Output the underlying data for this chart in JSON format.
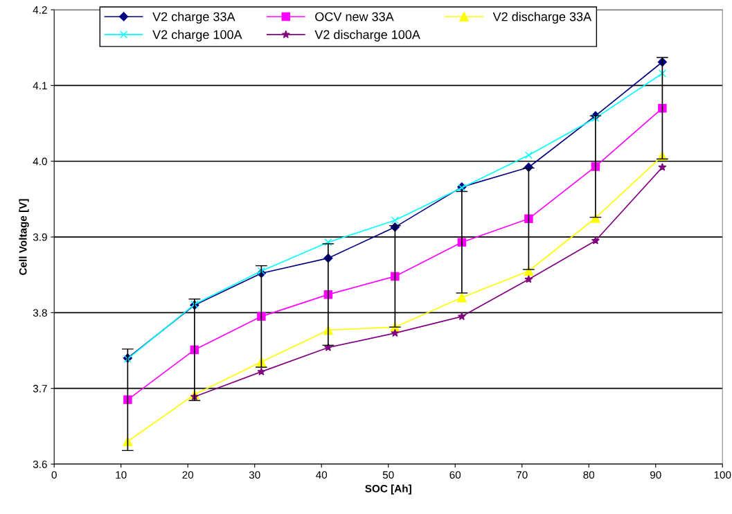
{
  "chart_data": {
    "type": "line",
    "xlabel": "SOC [Ah]",
    "ylabel": "Cell Voltage [V]",
    "x": [
      11,
      21,
      31,
      41,
      51,
      61,
      71,
      81,
      91
    ],
    "series": [
      {
        "name": "V2 charge 33A",
        "color": "#000080",
        "marker": "diamond",
        "values": [
          3.74,
          3.81,
          3.852,
          3.872,
          3.913,
          3.966,
          3.992,
          4.06,
          4.131
        ]
      },
      {
        "name": "OCV new 33A",
        "color": "#ff00ff",
        "marker": "square",
        "values": [
          3.685,
          3.751,
          3.795,
          3.824,
          3.848,
          3.893,
          3.924,
          3.993,
          4.07
        ],
        "errors": [
          0.067,
          0.067,
          0.067,
          0.067,
          0.067,
          0.067,
          0.067,
          0.067,
          0.067
        ]
      },
      {
        "name": "V2 discharge 33A",
        "color": "#ffff00",
        "marker": "triangle",
        "values": [
          3.63,
          3.692,
          3.735,
          3.777,
          3.781,
          3.82,
          3.855,
          3.925,
          4.007
        ]
      },
      {
        "name": "V2 charge 100A",
        "color": "#00ffff",
        "marker": "cross",
        "values": [
          3.739,
          3.811,
          3.855,
          3.893,
          3.922,
          3.965,
          4.008,
          4.057,
          4.116
        ]
      },
      {
        "name": "V2 discharge 100A",
        "color": "#800080",
        "marker": "star",
        "values": [
          null,
          3.689,
          3.722,
          3.754,
          3.773,
          3.795,
          3.844,
          3.895,
          3.992
        ]
      }
    ],
    "xlim": [
      0,
      100
    ],
    "xticks": [
      0,
      10,
      20,
      30,
      40,
      50,
      60,
      70,
      80,
      90,
      100
    ],
    "ylim": [
      3.6,
      4.2
    ],
    "yticks": [
      3.6,
      3.7,
      3.8,
      3.9,
      {
        "value": 4.0,
        "label": "4.0"
      },
      4.1,
      4.2
    ],
    "grid": "y",
    "legend": "top"
  }
}
